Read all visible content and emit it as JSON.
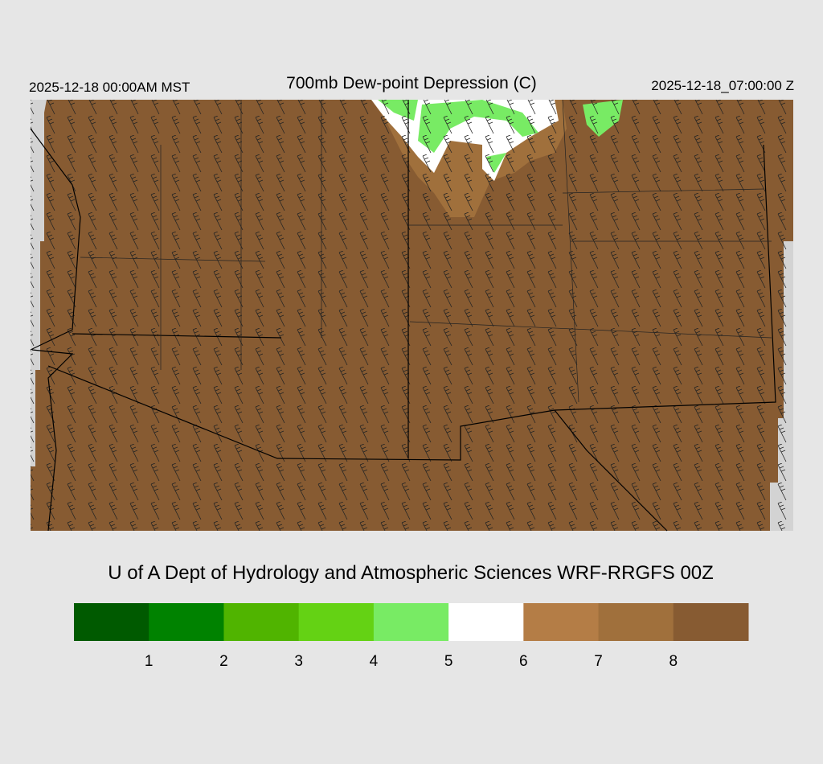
{
  "header": {
    "left": "2025-12-18 00:00AM MST",
    "title": "700mb Dew-point Depression (C)",
    "right": "2025-12-18_07:00:00 Z"
  },
  "footer": {
    "credit": "U of A Dept of Hydrology and Atmospheric Sciences WRF-RRGFS 00Z"
  },
  "colorbar": {
    "colors": [
      "#005a00",
      "#008200",
      "#50b400",
      "#64d214",
      "#78eb64",
      "#ffffff",
      "#b47d46",
      "#a0703c",
      "#875b32"
    ],
    "ticks": [
      1,
      2,
      3,
      4,
      5,
      6,
      7,
      8
    ]
  }
}
